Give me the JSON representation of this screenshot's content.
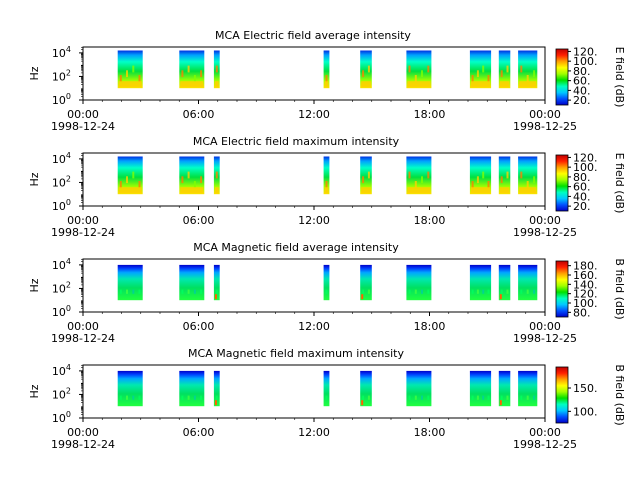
{
  "time_axis": {
    "ticks": [
      "00:00",
      "06:00",
      "12:00",
      "18:00",
      "00:00"
    ],
    "tick_hours": [
      0,
      6,
      12,
      18,
      24
    ],
    "start_date": "1998-12-24",
    "end_date": "1998-12-25",
    "xlim_hours": [
      0,
      24
    ]
  },
  "y_axis": {
    "label": "Hz",
    "scale": "log",
    "tick_exponents": [
      0,
      2,
      4
    ],
    "tick_base": "10",
    "ylim_exponent": [
      0,
      4.5
    ]
  },
  "colormap": [
    "#0000c8",
    "#0050ff",
    "#00c8ff",
    "#00ffc0",
    "#00e000",
    "#a0ff00",
    "#ffff00",
    "#ffa000",
    "#ff2000",
    "#c00000"
  ],
  "chart_data": [
    {
      "type": "heatmap",
      "title": "MCA  Electric field average intensity",
      "ylabel": "Hz",
      "colorbar": {
        "label": "E field (dB)",
        "ticks": [
          "20.",
          "40.",
          "60.",
          "80.",
          "100.",
          "120."
        ],
        "tick_values": [
          20,
          40,
          60,
          80,
          100,
          120
        ],
        "range": [
          10,
          125
        ]
      },
      "segments_hours": [
        [
          1.8,
          3.1
        ],
        [
          5.0,
          6.3
        ],
        [
          6.8,
          7.1
        ],
        [
          12.5,
          12.8
        ],
        [
          14.4,
          15.0
        ],
        [
          16.8,
          18.1
        ],
        [
          20.1,
          21.2
        ],
        [
          21.6,
          22.2
        ],
        [
          22.6,
          23.6
        ]
      ],
      "freq_range_exponent": [
        1,
        4.2
      ],
      "intensity_profile": "high at low frequency, low at high frequency"
    },
    {
      "type": "heatmap",
      "title": "MCA  Electric field maximum intensity",
      "ylabel": "Hz",
      "colorbar": {
        "label": "E field (dB)",
        "ticks": [
          "20.",
          "40.",
          "60.",
          "80.",
          "100.",
          "120."
        ],
        "tick_values": [
          20,
          40,
          60,
          80,
          100,
          120
        ],
        "range": [
          10,
          125
        ]
      },
      "segments_hours": [
        [
          1.8,
          3.1
        ],
        [
          5.0,
          6.3
        ],
        [
          6.8,
          7.1
        ],
        [
          12.5,
          12.8
        ],
        [
          14.4,
          15.0
        ],
        [
          16.8,
          18.1
        ],
        [
          20.1,
          21.2
        ],
        [
          21.6,
          22.2
        ],
        [
          22.6,
          23.6
        ]
      ],
      "freq_range_exponent": [
        1,
        4.2
      ],
      "intensity_profile": "high at low frequency, low at high frequency"
    },
    {
      "type": "heatmap",
      "title": "MCA  Magnetic field average intensity",
      "ylabel": "Hz",
      "colorbar": {
        "label": "B field (dB)",
        "ticks": [
          "80.",
          "100.",
          "120.",
          "140.",
          "160.",
          "180."
        ],
        "tick_values": [
          80,
          100,
          120,
          140,
          160,
          180
        ],
        "range": [
          70,
          190
        ]
      },
      "segments_hours": [
        [
          1.8,
          3.1
        ],
        [
          5.0,
          6.3
        ],
        [
          6.8,
          7.1
        ],
        [
          12.5,
          12.8
        ],
        [
          14.4,
          15.0
        ],
        [
          16.8,
          18.1
        ],
        [
          20.1,
          21.2
        ],
        [
          21.6,
          22.2
        ],
        [
          22.6,
          23.6
        ]
      ],
      "freq_range_exponent": [
        1,
        4.0
      ],
      "intensity_profile": "green at low frequency, blue at high frequency"
    },
    {
      "type": "heatmap",
      "title": "MCA  Magnetic field maximum intensity",
      "ylabel": "Hz",
      "colorbar": {
        "label": "B field (dB)",
        "ticks": [
          "100.",
          "150."
        ],
        "tick_values": [
          100,
          150
        ],
        "range": [
          75,
          195
        ]
      },
      "segments_hours": [
        [
          1.8,
          3.1
        ],
        [
          5.0,
          6.3
        ],
        [
          6.8,
          7.1
        ],
        [
          12.5,
          12.8
        ],
        [
          14.4,
          15.0
        ],
        [
          16.8,
          18.1
        ],
        [
          20.1,
          21.2
        ],
        [
          21.6,
          22.2
        ],
        [
          22.6,
          23.6
        ]
      ],
      "freq_range_exponent": [
        1,
        4.0
      ],
      "intensity_profile": "green at low frequency, blue at high frequency"
    }
  ]
}
